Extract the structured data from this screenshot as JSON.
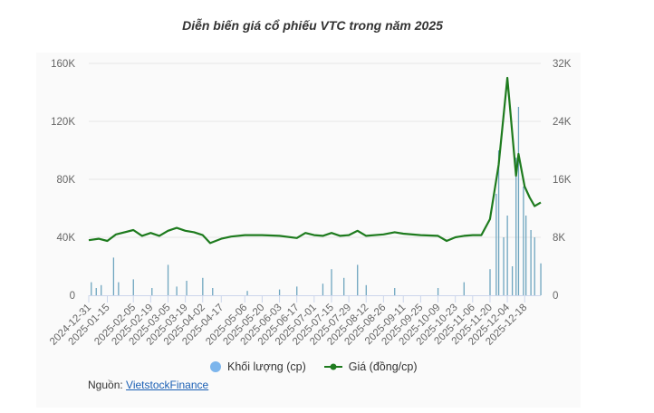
{
  "title": "Diễn biến giá cổ phiếu VTC trong năm 2025",
  "legend": {
    "volume_label": "Khối lượng (cp)",
    "price_label": "Giá (đồng/cp)"
  },
  "source": {
    "prefix": "Nguồn:",
    "link_text": "VietstockFinance"
  },
  "colors": {
    "volume": "#7cb5ec",
    "volume_bar": "#6ea5bf",
    "price": "#1e7b1e",
    "grid": "#e6e6e6",
    "panel_bg": "#fafafa"
  },
  "chart_data": {
    "type": "bar+line",
    "title": "Diễn biến giá cổ phiếu VTC trong năm 2025",
    "xlabel": "",
    "ylabel_left": "Khối lượng (cp)",
    "ylabel_right": "Giá (đồng/cp)",
    "left_axis": {
      "ticks": [
        "0",
        "40K",
        "80K",
        "120K",
        "160K"
      ],
      "range": [
        0,
        160000
      ]
    },
    "right_axis": {
      "ticks": [
        "0",
        "8K",
        "16K",
        "24K",
        "32K"
      ],
      "range": [
        0,
        32000
      ]
    },
    "x_tick_labels": [
      "2024-12-31",
      "2025-01-15",
      "2025-02-05",
      "2025-02-19",
      "2025-03-05",
      "2025-03-19",
      "2025-04-02",
      "2025-04-17",
      "2025-05-06",
      "2025-05-20",
      "2025-06-03",
      "2025-06-17",
      "2025-07-01",
      "2025-07-15",
      "2025-07-29",
      "2025-08-12",
      "2025-08-26",
      "2025-09-11",
      "2025-09-25",
      "2025-10-09",
      "2025-10-23",
      "2025-11-06",
      "2025-11-20",
      "2025-12-04",
      "2025-12-18"
    ],
    "legend_position": "bottom",
    "grid": true,
    "series": [
      {
        "name": "Giá (đồng/cp)",
        "type": "line",
        "axis": "right",
        "points": [
          [
            "2024-12-31",
            7600
          ],
          [
            "2025-01-08",
            7800
          ],
          [
            "2025-01-15",
            7500
          ],
          [
            "2025-01-22",
            8400
          ],
          [
            "2025-02-05",
            9000
          ],
          [
            "2025-02-12",
            8200
          ],
          [
            "2025-02-19",
            8600
          ],
          [
            "2025-02-26",
            8200
          ],
          [
            "2025-03-05",
            8900
          ],
          [
            "2025-03-12",
            9300
          ],
          [
            "2025-03-19",
            8900
          ],
          [
            "2025-03-26",
            8700
          ],
          [
            "2025-04-02",
            8300
          ],
          [
            "2025-04-08",
            7200
          ],
          [
            "2025-04-17",
            7800
          ],
          [
            "2025-04-25",
            8100
          ],
          [
            "2025-05-06",
            8300
          ],
          [
            "2025-05-20",
            8300
          ],
          [
            "2025-06-03",
            8200
          ],
          [
            "2025-06-17",
            7900
          ],
          [
            "2025-06-24",
            8600
          ],
          [
            "2025-07-01",
            8300
          ],
          [
            "2025-07-08",
            8200
          ],
          [
            "2025-07-15",
            8600
          ],
          [
            "2025-07-22",
            8200
          ],
          [
            "2025-07-29",
            8300
          ],
          [
            "2025-08-05",
            8900
          ],
          [
            "2025-08-12",
            8200
          ],
          [
            "2025-08-26",
            8400
          ],
          [
            "2025-09-04",
            8700
          ],
          [
            "2025-09-11",
            8500
          ],
          [
            "2025-09-25",
            8300
          ],
          [
            "2025-10-09",
            8200
          ],
          [
            "2025-10-16",
            7500
          ],
          [
            "2025-10-23",
            8000
          ],
          [
            "2025-10-30",
            8200
          ],
          [
            "2025-11-06",
            8300
          ],
          [
            "2025-11-13",
            8300
          ],
          [
            "2025-11-20",
            10500
          ],
          [
            "2025-11-27",
            18000
          ],
          [
            "2025-12-04",
            30000
          ],
          [
            "2025-12-11",
            16500
          ],
          [
            "2025-12-13",
            19500
          ],
          [
            "2025-12-18",
            15000
          ],
          [
            "2025-12-22",
            13500
          ],
          [
            "2025-12-26",
            12300
          ],
          [
            "2025-12-31",
            12800
          ]
        ]
      },
      {
        "name": "Khối lượng (cp)",
        "type": "bar",
        "axis": "left",
        "approx_notes": "Daily volumes mostly below 20K until mid-November; spikes to ~100K on 2025-11-25 to 2025-12-05, max ~130K around 2025-12-13",
        "points": [
          [
            "2025-01-02",
            9000
          ],
          [
            "2025-01-06",
            5000
          ],
          [
            "2025-01-10",
            7000
          ],
          [
            "2025-01-20",
            26000
          ],
          [
            "2025-01-24",
            9000
          ],
          [
            "2025-02-05",
            11000
          ],
          [
            "2025-02-20",
            5000
          ],
          [
            "2025-03-05",
            21000
          ],
          [
            "2025-03-12",
            6000
          ],
          [
            "2025-03-20",
            10000
          ],
          [
            "2025-04-02",
            12000
          ],
          [
            "2025-04-10",
            5000
          ],
          [
            "2025-05-08",
            3000
          ],
          [
            "2025-06-03",
            4000
          ],
          [
            "2025-06-17",
            6000
          ],
          [
            "2025-07-08",
            8000
          ],
          [
            "2025-07-15",
            18000
          ],
          [
            "2025-07-25",
            12000
          ],
          [
            "2025-08-05",
            21000
          ],
          [
            "2025-08-12",
            7000
          ],
          [
            "2025-09-04",
            5000
          ],
          [
            "2025-10-09",
            5000
          ],
          [
            "2025-10-30",
            9000
          ],
          [
            "2025-11-20",
            18000
          ],
          [
            "2025-11-25",
            70000
          ],
          [
            "2025-11-27",
            100000
          ],
          [
            "2025-12-01",
            40000
          ],
          [
            "2025-12-04",
            55000
          ],
          [
            "2025-12-08",
            20000
          ],
          [
            "2025-12-11",
            95000
          ],
          [
            "2025-12-13",
            130000
          ],
          [
            "2025-12-17",
            75000
          ],
          [
            "2025-12-19",
            55000
          ],
          [
            "2025-12-23",
            45000
          ],
          [
            "2025-12-26",
            40000
          ],
          [
            "2025-12-31",
            22000
          ]
        ]
      }
    ]
  }
}
